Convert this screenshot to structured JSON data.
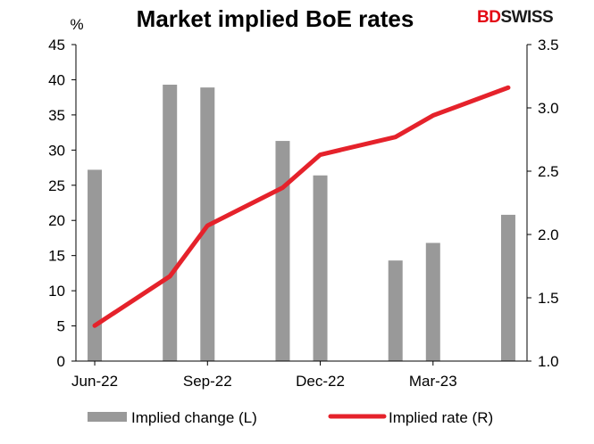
{
  "brand": {
    "prefix": "BD",
    "suffix": "SWISS"
  },
  "colors": {
    "bar": "#999999",
    "line": "#e5222b",
    "axis": "#000000",
    "brand_red": "#e30613"
  },
  "chart_data": {
    "type": "bar+line",
    "title": "Market implied BoE rates",
    "left_axis_unit": "%",
    "left_axis": {
      "min": 0,
      "max": 45,
      "step": 5,
      "ticks": [
        "0",
        "5",
        "10",
        "15",
        "20",
        "25",
        "30",
        "35",
        "40",
        "45"
      ]
    },
    "right_axis": {
      "min": 1.0,
      "max": 3.5,
      "step": 0.5,
      "ticks": [
        "1.0",
        "1.5",
        "2.0",
        "2.5",
        "3.0",
        "3.5"
      ]
    },
    "x_axis": {
      "num_periods": 12,
      "tick_labels": [
        "Jun-22",
        "Sep-22",
        "Dec-22",
        "Mar-23"
      ],
      "tick_label_periods": [
        0,
        3,
        6,
        9
      ]
    },
    "series": [
      {
        "name": "Implied change (L)",
        "type": "bar",
        "axis": "left",
        "points": [
          {
            "period": 0,
            "value": 27.2
          },
          {
            "period": 2,
            "value": 39.3
          },
          {
            "period": 3,
            "value": 38.9
          },
          {
            "period": 5,
            "value": 31.3
          },
          {
            "period": 6,
            "value": 26.4
          },
          {
            "period": 8,
            "value": 14.3
          },
          {
            "period": 9,
            "value": 16.8
          },
          {
            "period": 11,
            "value": 20.8
          }
        ]
      },
      {
        "name": "Implied rate (R)",
        "type": "line",
        "axis": "right",
        "points": [
          {
            "period": 0,
            "value": 1.28
          },
          {
            "period": 2,
            "value": 1.67
          },
          {
            "period": 3,
            "value": 2.07
          },
          {
            "period": 5,
            "value": 2.37
          },
          {
            "period": 6,
            "value": 2.63
          },
          {
            "period": 8,
            "value": 2.77
          },
          {
            "period": 9,
            "value": 2.94
          },
          {
            "period": 11,
            "value": 3.16
          }
        ]
      }
    ],
    "grid": false,
    "legend_position": "bottom"
  }
}
